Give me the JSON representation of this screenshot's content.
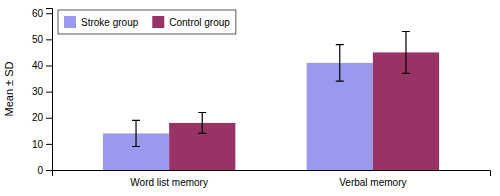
{
  "chart_data": {
    "type": "bar",
    "categories": [
      "Word list memory",
      "Verbal memory"
    ],
    "series": [
      {
        "name": "Stroke group",
        "color": "#9999ee",
        "values": [
          14,
          41
        ],
        "errors": [
          5,
          7
        ]
      },
      {
        "name": "Control group",
        "color": "#993366",
        "values": [
          18,
          45
        ],
        "errors": [
          4,
          8
        ]
      }
    ],
    "ylabel": "Mean ± SD",
    "ylim": [
      0,
      62
    ],
    "yticks": [
      0,
      10,
      20,
      30,
      40,
      50,
      60
    ],
    "legend": "upper left",
    "grid": false
  }
}
